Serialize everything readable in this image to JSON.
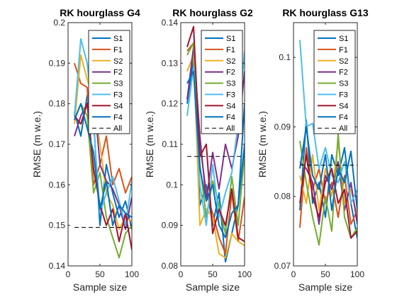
{
  "chart_data": [
    {
      "type": "line",
      "title": "RK hourglass G4",
      "xlabel": "Sample size",
      "ylabel": "RMSE (m w.e.)",
      "xlim": [
        0,
        100
      ],
      "ylim": [
        0.14,
        0.2
      ],
      "xticks": [
        "0",
        "50",
        "100"
      ],
      "yticks": [
        "0.14",
        "0.15",
        "0.16",
        "0.17",
        "0.18",
        "0.19",
        "0.2"
      ],
      "x": [
        10,
        20,
        30,
        40,
        50,
        60,
        70,
        80,
        90,
        100
      ],
      "legend_position": "top-right",
      "series": [
        {
          "name": "S1",
          "color": "#0072BD",
          "dashed": false,
          "values": [
            0.178,
            0.172,
            0.182,
            0.176,
            0.15,
            0.165,
            0.158,
            0.152,
            0.156,
            0.149
          ]
        },
        {
          "name": "F1",
          "color": "#D95319",
          "dashed": false,
          "values": [
            0.19,
            0.185,
            0.184,
            0.16,
            0.165,
            0.172,
            0.16,
            0.164,
            0.158,
            0.162
          ]
        },
        {
          "name": "S2",
          "color": "#EDB120",
          "dashed": false,
          "values": [
            0.175,
            0.192,
            0.186,
            0.181,
            0.17,
            0.158,
            0.155,
            0.149,
            0.152,
            0.151
          ]
        },
        {
          "name": "F2",
          "color": "#7E2F8E",
          "dashed": false,
          "values": [
            0.172,
            0.177,
            0.18,
            0.183,
            0.165,
            0.161,
            0.159,
            0.155,
            0.149,
            0.157
          ]
        },
        {
          "name": "S3",
          "color": "#77AC30",
          "dashed": false,
          "values": [
            0.176,
            0.18,
            0.177,
            0.158,
            0.163,
            0.152,
            0.147,
            0.142,
            0.148,
            0.15
          ]
        },
        {
          "name": "F3",
          "color": "#4DBEEE",
          "dashed": false,
          "values": [
            0.177,
            0.196,
            0.19,
            0.175,
            0.153,
            0.158,
            0.162,
            0.156,
            0.15,
            0.161
          ]
        },
        {
          "name": "S4",
          "color": "#A2142F",
          "dashed": false,
          "values": [
            0.177,
            0.175,
            0.18,
            0.164,
            0.155,
            0.15,
            0.154,
            0.146,
            0.153,
            0.144
          ]
        },
        {
          "name": "F4",
          "color": "#0072BD",
          "dashed": false,
          "values": [
            0.176,
            0.18,
            0.174,
            0.168,
            0.154,
            0.161,
            0.15,
            0.155,
            0.153,
            0.152
          ]
        },
        {
          "name": "All",
          "color": "#000000",
          "dashed": true,
          "values": [
            0.1495,
            0.1495,
            0.1495,
            0.1495,
            0.1495,
            0.1495,
            0.1495,
            0.1495,
            0.1495,
            0.1495
          ]
        }
      ]
    },
    {
      "type": "line",
      "title": "RK hourglass G2",
      "xlabel": "Sample size",
      "ylabel": "RMSE (m w.e.)",
      "xlim": [
        0,
        100
      ],
      "ylim": [
        0.08,
        0.14
      ],
      "xticks": [
        "0",
        "50",
        "100"
      ],
      "yticks": [
        "0.08",
        "0.09",
        "0.1",
        "0.11",
        "0.12",
        "0.13",
        "0.14"
      ],
      "x": [
        10,
        20,
        30,
        40,
        50,
        60,
        70,
        80,
        90,
        100
      ],
      "legend_position": "top-right",
      "series": [
        {
          "name": "S1",
          "color": "#0072BD",
          "dashed": false,
          "values": [
            0.12,
            0.131,
            0.095,
            0.1,
            0.09,
            0.098,
            0.081,
            0.088,
            0.095,
            0.12
          ]
        },
        {
          "name": "F1",
          "color": "#D95319",
          "dashed": false,
          "values": [
            0.133,
            0.135,
            0.11,
            0.098,
            0.093,
            0.087,
            0.083,
            0.098,
            0.086,
            0.097
          ]
        },
        {
          "name": "S2",
          "color": "#EDB120",
          "dashed": false,
          "values": [
            0.128,
            0.132,
            0.09,
            0.094,
            0.092,
            0.083,
            0.082,
            0.088,
            0.086,
            0.085
          ]
        },
        {
          "name": "F2",
          "color": "#7E2F8E",
          "dashed": false,
          "values": [
            0.121,
            0.134,
            0.112,
            0.096,
            0.108,
            0.099,
            0.11,
            0.104,
            0.112,
            0.128
          ]
        },
        {
          "name": "S3",
          "color": "#77AC30",
          "dashed": false,
          "values": [
            0.132,
            0.135,
            0.105,
            0.092,
            0.101,
            0.095,
            0.088,
            0.102,
            0.09,
            0.108
          ]
        },
        {
          "name": "F3",
          "color": "#4DBEEE",
          "dashed": false,
          "values": [
            0.117,
            0.129,
            0.1,
            0.09,
            0.105,
            0.092,
            0.098,
            0.103,
            0.115,
            0.133
          ]
        },
        {
          "name": "S4",
          "color": "#A2142F",
          "dashed": false,
          "values": [
            0.134,
            0.139,
            0.107,
            0.11,
            0.088,
            0.094,
            0.09,
            0.099,
            0.087,
            0.086
          ]
        },
        {
          "name": "F4",
          "color": "#0072BD",
          "dashed": false,
          "values": [
            0.125,
            0.128,
            0.104,
            0.096,
            0.1,
            0.09,
            0.087,
            0.093,
            0.095,
            0.11
          ]
        },
        {
          "name": "All",
          "color": "#000000",
          "dashed": true,
          "values": [
            0.107,
            0.107,
            0.107,
            0.107,
            0.107,
            0.107,
            0.107,
            0.107,
            0.107,
            0.107
          ]
        }
      ]
    },
    {
      "type": "line",
      "title": "RK hourglass G13",
      "xlabel": "Sample size",
      "ylabel": "RMSE (m w.e.)",
      "xlim": [
        0,
        100
      ],
      "ylim": [
        0.07,
        0.105
      ],
      "xticks": [
        "0",
        "50",
        "100"
      ],
      "yticks": [
        "0.07",
        "0.08",
        "0.09",
        "0.1"
      ],
      "x": [
        10,
        20,
        30,
        40,
        50,
        60,
        70,
        80,
        90,
        100
      ],
      "legend_position": "top-right",
      "series": [
        {
          "name": "S1",
          "color": "#0072BD",
          "dashed": false,
          "values": [
            0.078,
            0.091,
            0.079,
            0.082,
            0.077,
            0.086,
            0.083,
            0.087,
            0.079,
            0.074
          ]
        },
        {
          "name": "F1",
          "color": "#D95319",
          "dashed": false,
          "values": [
            0.0755,
            0.087,
            0.081,
            0.084,
            0.079,
            0.082,
            0.077,
            0.083,
            0.076,
            0.078
          ]
        },
        {
          "name": "S2",
          "color": "#EDB120",
          "dashed": false,
          "values": [
            0.083,
            0.079,
            0.086,
            0.078,
            0.084,
            0.08,
            0.088,
            0.079,
            0.081,
            0.077
          ]
        },
        {
          "name": "F2",
          "color": "#7E2F8E",
          "dashed": false,
          "values": [
            0.085,
            0.084,
            0.082,
            0.076,
            0.083,
            0.081,
            0.085,
            0.078,
            0.082,
            0.076
          ]
        },
        {
          "name": "S3",
          "color": "#77AC30",
          "dashed": false,
          "values": [
            0.088,
            0.082,
            0.077,
            0.073,
            0.08,
            0.075,
            0.089,
            0.077,
            0.074,
            0.0755
          ]
        },
        {
          "name": "F3",
          "color": "#4DBEEE",
          "dashed": false,
          "values": [
            0.1025,
            0.09,
            0.0905,
            0.084,
            0.087,
            0.083,
            0.082,
            0.085,
            0.079,
            0.081
          ]
        },
        {
          "name": "S4",
          "color": "#A2142F",
          "dashed": false,
          "values": [
            0.079,
            0.086,
            0.08,
            0.077,
            0.082,
            0.084,
            0.079,
            0.081,
            0.074,
            0.075
          ]
        },
        {
          "name": "F4",
          "color": "#0072BD",
          "dashed": false,
          "values": [
            0.084,
            0.09,
            0.083,
            0.081,
            0.086,
            0.078,
            0.084,
            0.082,
            0.0865,
            0.078
          ]
        },
        {
          "name": "All",
          "color": "#000000",
          "dashed": true,
          "values": [
            0.0845,
            0.0845,
            0.0845,
            0.0845,
            0.0845,
            0.0845,
            0.0845,
            0.0845,
            0.0845,
            0.0845
          ]
        }
      ]
    }
  ]
}
